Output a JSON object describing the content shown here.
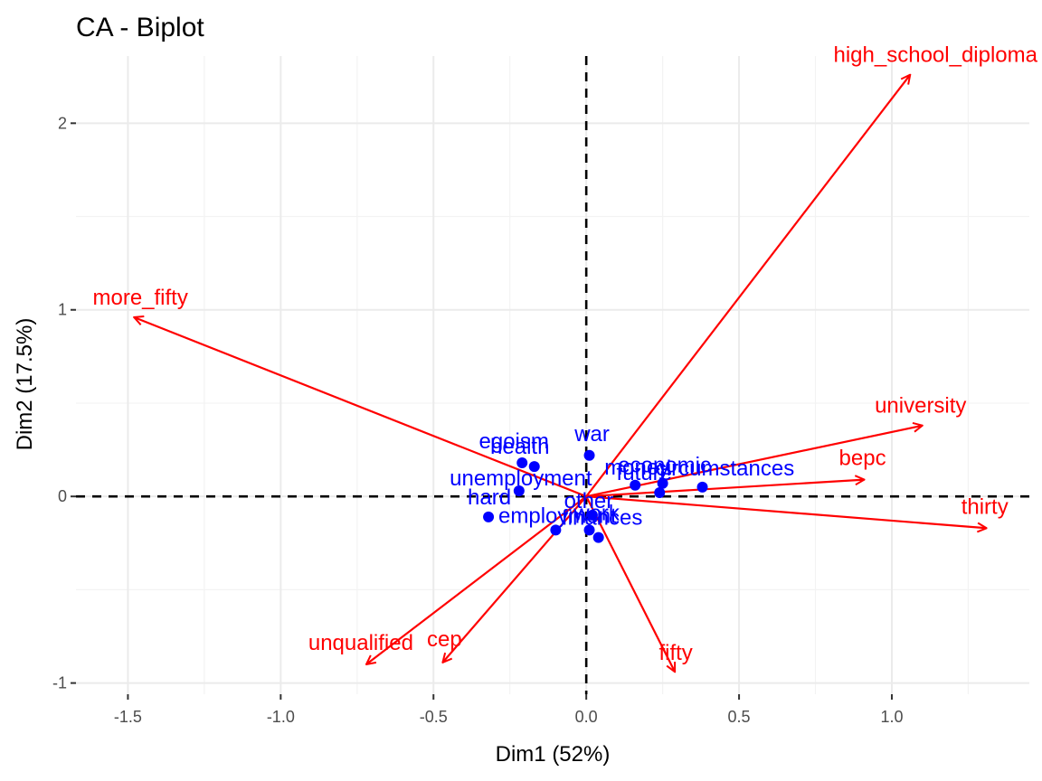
{
  "chart_data": {
    "type": "scatter",
    "title": "CA - Biplot",
    "xlabel": "Dim1 (52%)",
    "ylabel": "Dim2 (17.5%)",
    "xlim": [
      -1.67,
      1.45
    ],
    "ylim": [
      -1.06,
      2.36
    ],
    "xticks": [
      -1.5,
      -1.0,
      -0.5,
      0.0,
      0.5,
      1.0
    ],
    "xtick_labels": [
      "-1.5",
      "-1.0",
      "-0.5",
      "0.0",
      "0.5",
      "1.0"
    ],
    "yticks": [
      -1,
      0,
      1,
      2
    ],
    "ytick_labels": [
      "-1",
      "0",
      "1",
      "2"
    ],
    "grid": true,
    "reference_lines": {
      "x": 0,
      "y": 0,
      "style": "dashed"
    },
    "colors": {
      "columns": "#ff0000",
      "rows": "#0000ff",
      "grid": "#ebebeb"
    },
    "series": [
      {
        "name": "columns",
        "display": "arrows",
        "points": [
          {
            "label": "high_school_diploma",
            "x": 1.06,
            "y": 2.26
          },
          {
            "label": "more_fifty",
            "x": -1.48,
            "y": 0.96
          },
          {
            "label": "university",
            "x": 1.1,
            "y": 0.38
          },
          {
            "label": "bepc",
            "x": 0.91,
            "y": 0.09
          },
          {
            "label": "thirty",
            "x": 1.31,
            "y": -0.17
          },
          {
            "label": "unqualified",
            "x": -0.72,
            "y": -0.9
          },
          {
            "label": "cep",
            "x": -0.47,
            "y": -0.89
          },
          {
            "label": "fifty",
            "x": 0.29,
            "y": -0.94
          }
        ]
      },
      {
        "name": "rows",
        "display": "points",
        "points": [
          {
            "label": "war",
            "x": 0.01,
            "y": 0.22
          },
          {
            "label": "egoism",
            "x": -0.21,
            "y": 0.18
          },
          {
            "label": "health",
            "x": -0.17,
            "y": 0.16
          },
          {
            "label": "unemployment",
            "x": -0.22,
            "y": 0.03
          },
          {
            "label": "hard",
            "x": -0.32,
            "y": -0.11
          },
          {
            "label": "money",
            "x": 0.16,
            "y": 0.06
          },
          {
            "label": "economic",
            "x": 0.25,
            "y": 0.07
          },
          {
            "label": "circumstances",
            "x": 0.38,
            "y": 0.05
          },
          {
            "label": "future",
            "x": 0.24,
            "y": 0.02
          },
          {
            "label": "employment",
            "x": -0.1,
            "y": -0.18
          },
          {
            "label": "work",
            "x": 0.01,
            "y": -0.18
          },
          {
            "label": "finances",
            "x": 0.04,
            "y": -0.22
          },
          {
            "label": "other",
            "x": 0.02,
            "y": -0.1
          }
        ]
      }
    ]
  }
}
